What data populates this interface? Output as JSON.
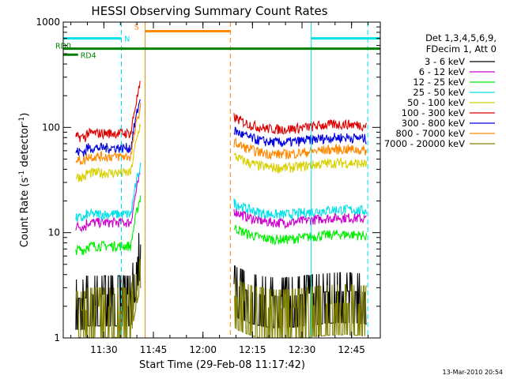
{
  "chart_data": {
    "type": "line",
    "title": "HESSI Observing Summary Count Rates",
    "xlabel": "Start Time (29-Feb-08 11:17:42)",
    "ylabel_main": "Count Rate (s",
    "ylabel_sup1": "-1",
    "ylabel_mid": " detector",
    "ylabel_sup2": "-1",
    "ylabel_end": ")",
    "y_scale": "log",
    "ylim": [
      1,
      1000
    ],
    "xlim_minutes": [
      0,
      96
    ],
    "x_ticks": [
      {
        "m": 12.3,
        "label": "11:30"
      },
      {
        "m": 27.3,
        "label": "11:45"
      },
      {
        "m": 42.3,
        "label": "12:00"
      },
      {
        "m": 57.3,
        "label": "12:15"
      },
      {
        "m": 72.3,
        "label": "12:30"
      },
      {
        "m": 87.3,
        "label": "12:45"
      }
    ],
    "y_ticks": [
      {
        "v": 1,
        "label": "1"
      },
      {
        "v": 10,
        "label": "10"
      },
      {
        "v": 100,
        "label": "100"
      },
      {
        "v": 1000,
        "label": "1000"
      }
    ],
    "timestamp": "13-Mar-2010 20:54",
    "legend": {
      "header": [
        "Det 1,3,4,5,6,9,",
        "FDecim 1, Att 0"
      ],
      "placement": "right"
    },
    "series": [
      {
        "name": "3 - 6 keV",
        "color": "#000000",
        "v1": 2.6,
        "v2": 2.6
      },
      {
        "name": "6 - 12 keV",
        "color": "#cc00cc",
        "v1": 12.5,
        "v2": 13
      },
      {
        "name": "12 - 25 keV",
        "color": "#00ee00",
        "v1": 7.5,
        "v2": 9
      },
      {
        "name": "25 - 50 keV",
        "color": "#00e0e8",
        "v1": 15,
        "v2": 15.5
      },
      {
        "name": "50 - 100 keV",
        "color": "#d8d000",
        "v1": 37,
        "v2": 43
      },
      {
        "name": "100 - 300 keV",
        "color": "#dd0000",
        "v1": 88,
        "v2": 100
      },
      {
        "name": "300 - 800 keV",
        "color": "#0000dd",
        "v1": 64,
        "v2": 75
      },
      {
        "name": "800 - 7000 keV",
        "color": "#ff8800",
        "v1": 53,
        "v2": 58
      },
      {
        "name": "7000 - 20000 keV",
        "color": "#808000",
        "v1": 2.0,
        "v2": 2.0
      }
    ],
    "flags": [
      {
        "label": "N",
        "color": "#00e0e8",
        "value": 700
      },
      {
        "label": "S",
        "color": "#ff8800",
        "value": 820
      },
      {
        "label": "RD0",
        "color": "#008000",
        "value": 560
      },
      {
        "label": "RD4",
        "color": "#008000",
        "value": 490
      }
    ],
    "markers": [
      {
        "m": 0,
        "color": "#00e0e8"
      },
      {
        "m": 17.6,
        "color": "#00e0e8"
      },
      {
        "m": 24.8,
        "color": "#d89000"
      },
      {
        "m": 50.6,
        "color": "#ff8800"
      },
      {
        "m": 75.1,
        "color": "#00e0e8"
      },
      {
        "m": 92.2,
        "color": "#00e0e8"
      }
    ]
  }
}
